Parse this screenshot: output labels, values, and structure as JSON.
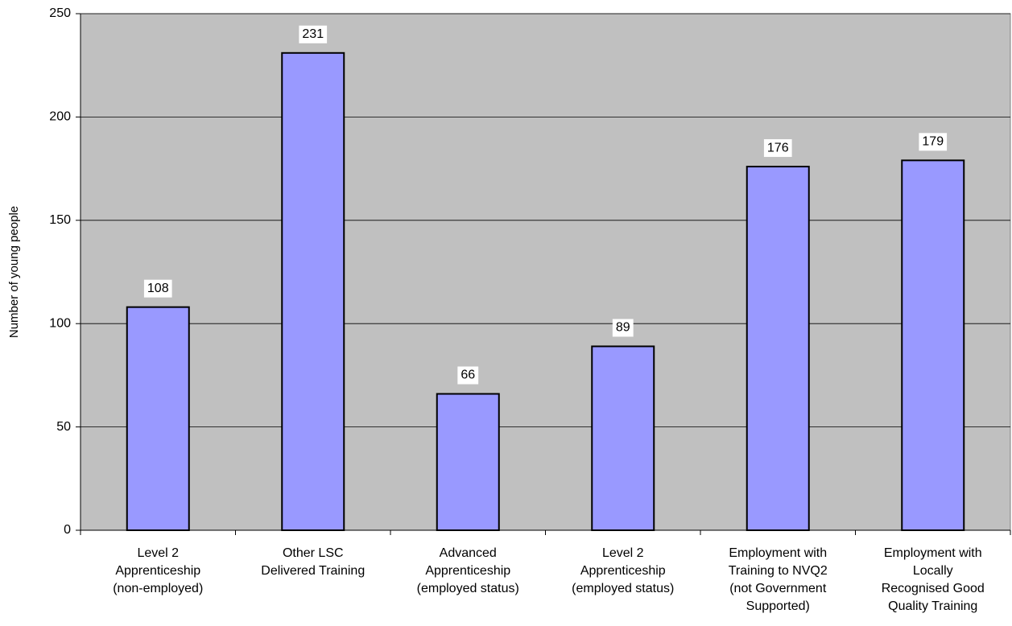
{
  "chart_data": {
    "type": "bar",
    "y_label": "Number of young people",
    "categories": [
      [
        "Level 2",
        "Apprenticeship",
        "(non-employed)"
      ],
      [
        "Other LSC",
        "Delivered Training"
      ],
      [
        "Advanced",
        "Apprenticeship",
        "(employed status)"
      ],
      [
        "Level 2",
        "Apprenticeship",
        "(employed status)"
      ],
      [
        "Employment with",
        "Training  to NVQ2",
        "(not Government",
        "Supported)"
      ],
      [
        "Employment with",
        "Locally",
        "Recognised Good",
        "Quality Training"
      ]
    ],
    "values": [
      108,
      231,
      66,
      89,
      176,
      179
    ],
    "color": "#9999ff",
    "ylim": [
      0,
      250
    ],
    "yticks": [
      0,
      50,
      100,
      150,
      200,
      250
    ],
    "grid": true
  }
}
